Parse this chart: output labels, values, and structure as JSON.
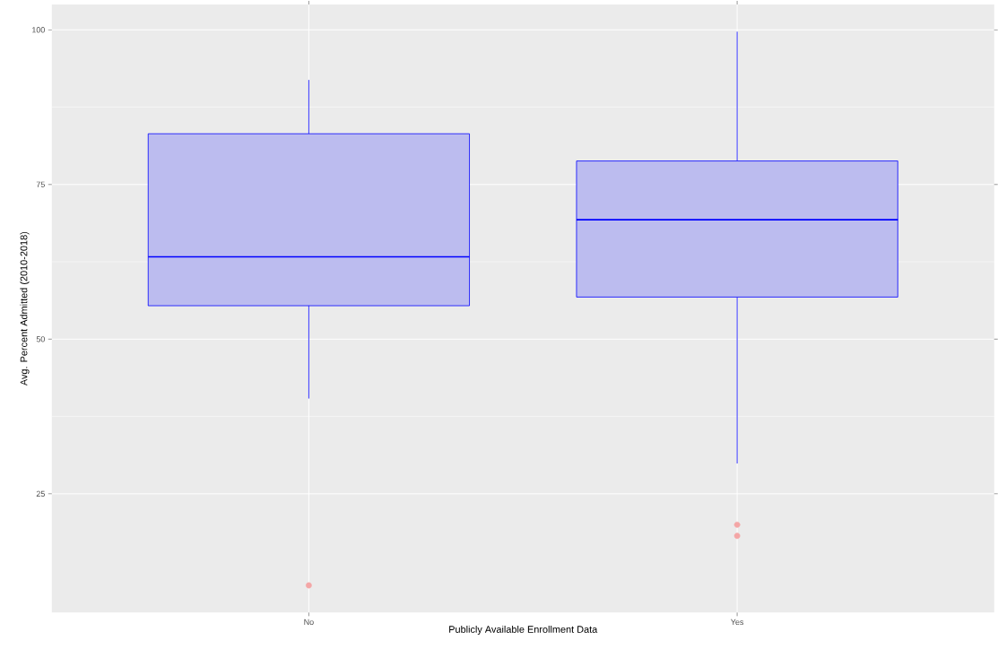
{
  "chart_data": {
    "type": "box",
    "xlabel": "Publicly Available Enrollment Data",
    "ylabel": "Avg. Percent Admitted (2010-2018)",
    "categories": [
      "No",
      "Yes"
    ],
    "ylim": [
      5.8,
      104.1
    ],
    "yticks": [
      25,
      50,
      75,
      100
    ],
    "grid": true,
    "series": [
      {
        "color": "#0000ff",
        "boxes": [
          {
            "low": 40.4,
            "q1": 55.4,
            "median": 63.3,
            "q3": 83.2,
            "high": 91.9,
            "outliers": [
              10.2
            ]
          },
          {
            "low": 29.9,
            "q1": 56.8,
            "median": 69.3,
            "q3": 78.8,
            "high": 99.7,
            "outliers": [
              20.0,
              18.2
            ]
          }
        ]
      }
    ]
  }
}
